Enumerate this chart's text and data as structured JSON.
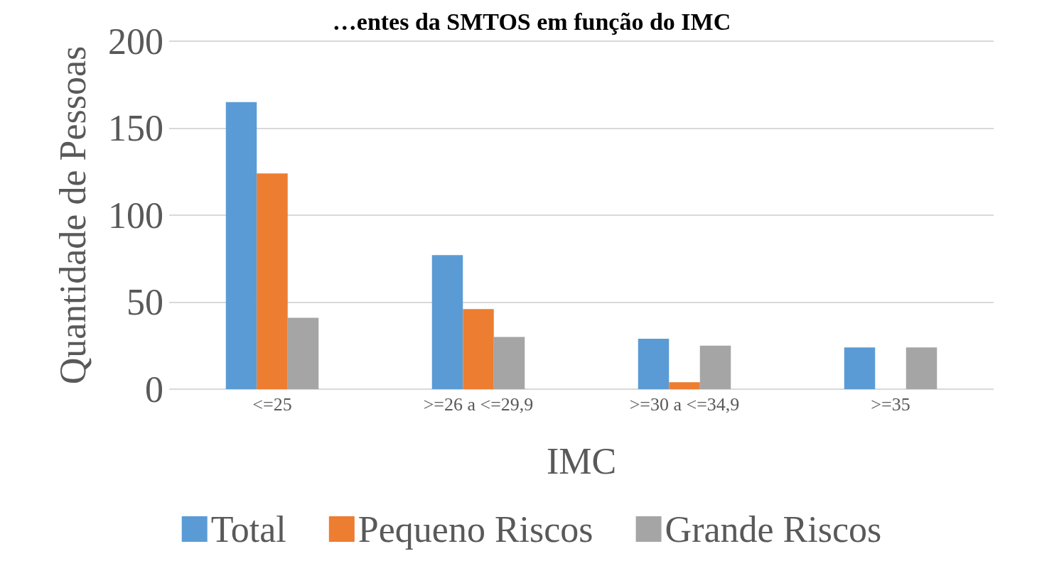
{
  "chart_data": {
    "type": "bar",
    "title": "…entes da SMTOS em função do IMC",
    "xlabel": "IMC",
    "ylabel": "Quantidade de Pessoas",
    "categories": [
      "<=25",
      ">=26 a <=29,9",
      ">=30 a <=34,9",
      ">=35"
    ],
    "series": [
      {
        "name": "Total",
        "color": "#5b9bd5",
        "values": [
          165,
          77,
          29,
          24
        ]
      },
      {
        "name": "Pequeno Riscos",
        "color": "#ed7d31",
        "values": [
          124,
          46,
          4,
          0
        ]
      },
      {
        "name": "Grande Riscos",
        "color": "#a5a5a5",
        "values": [
          41,
          30,
          25,
          24
        ]
      }
    ],
    "ylim": [
      0,
      200
    ],
    "yticks": [
      0,
      50,
      100,
      150,
      200
    ],
    "grid": "y",
    "legend": "bottom"
  }
}
